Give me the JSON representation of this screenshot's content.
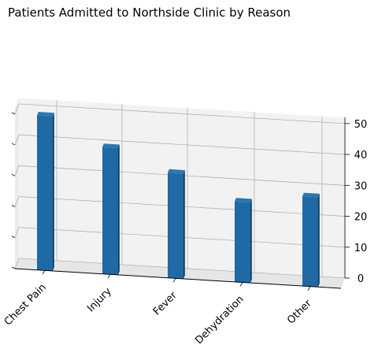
{
  "chart_data": {
    "type": "bar",
    "title": "Patients Admitted to Northside Clinic by Reason",
    "categories": [
      "Chest Pain",
      "Injury",
      "Fever",
      "Dehydration",
      "Other"
    ],
    "values": [
      50,
      41,
      34,
      26,
      29
    ],
    "xlabel": "",
    "ylabel": "",
    "ylim": [
      0,
      52
    ],
    "yticks": [
      0,
      10,
      20,
      30,
      40,
      50
    ],
    "grid": true,
    "colors": {
      "bar_front": "#1f6aa5",
      "bar_side": "#0f3d5e",
      "bar_top": "#2878b5",
      "pane": "#f2f2f2",
      "grid": "#b0b0b0"
    }
  }
}
